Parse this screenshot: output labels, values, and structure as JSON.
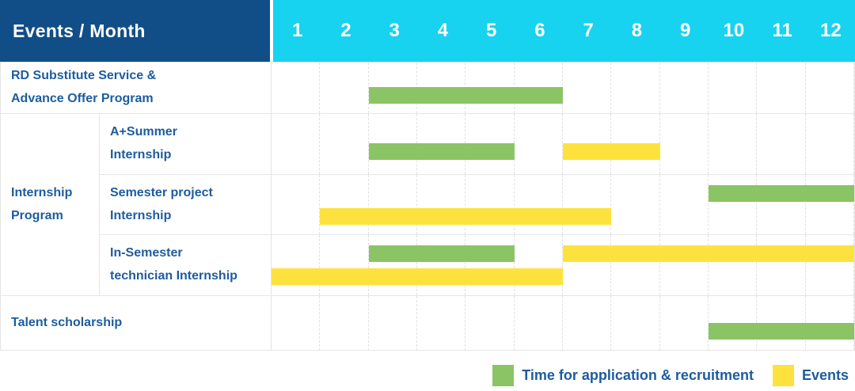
{
  "header": {
    "title": "Events / Month"
  },
  "colors": {
    "header_bg": "#114e87",
    "months_bg": "#17d3f0",
    "label_text": "#1d5c9e",
    "application_green": "#8bc464",
    "events_yellow": "#fde23d",
    "gridline": "#e0e0e0"
  },
  "chart_data": {
    "type": "gantt",
    "title": "Events / Month",
    "x_axis_label": "Month",
    "months": [
      "1",
      "2",
      "3",
      "4",
      "5",
      "6",
      "7",
      "8",
      "9",
      "10",
      "11",
      "12"
    ],
    "series": {
      "application": {
        "label": "Time for application & recruitment",
        "color": "#8bc464"
      },
      "events": {
        "label": "Events",
        "color": "#fde23d"
      }
    },
    "rows": [
      {
        "group": "",
        "label": "RD Substitute Service &\nAdvance Offer Program",
        "bars": [
          {
            "series": "application",
            "start": 3,
            "end": 6,
            "line": 0
          }
        ]
      },
      {
        "group": "Internship\nProgram",
        "label": "A+Summer\nInternship",
        "bars": [
          {
            "series": "application",
            "start": 3,
            "end": 5,
            "line": 0
          },
          {
            "series": "events",
            "start": 7,
            "end": 8,
            "line": 0
          }
        ]
      },
      {
        "group": "Internship\nProgram",
        "label": "Semester project\nInternship",
        "bars": [
          {
            "series": "application",
            "start": 10,
            "end": 12,
            "line": 0
          },
          {
            "series": "events",
            "start": 2,
            "end": 7,
            "line": 1
          }
        ]
      },
      {
        "group": "Internship\nProgram",
        "label": "In-Semester\ntechnician Internship",
        "bars": [
          {
            "series": "application",
            "start": 3,
            "end": 5,
            "line": 0
          },
          {
            "series": "events",
            "start": 7,
            "end": 12,
            "line": 0
          },
          {
            "series": "events",
            "start": 1,
            "end": 6,
            "line": 1
          }
        ]
      },
      {
        "group": "",
        "label": "Talent scholarship",
        "bars": [
          {
            "series": "application",
            "start": 10,
            "end": 12,
            "line": 0
          }
        ]
      }
    ],
    "legend": [
      {
        "series": "application",
        "label": "Time for application & recruitment"
      },
      {
        "series": "events",
        "label": "Events"
      }
    ]
  }
}
